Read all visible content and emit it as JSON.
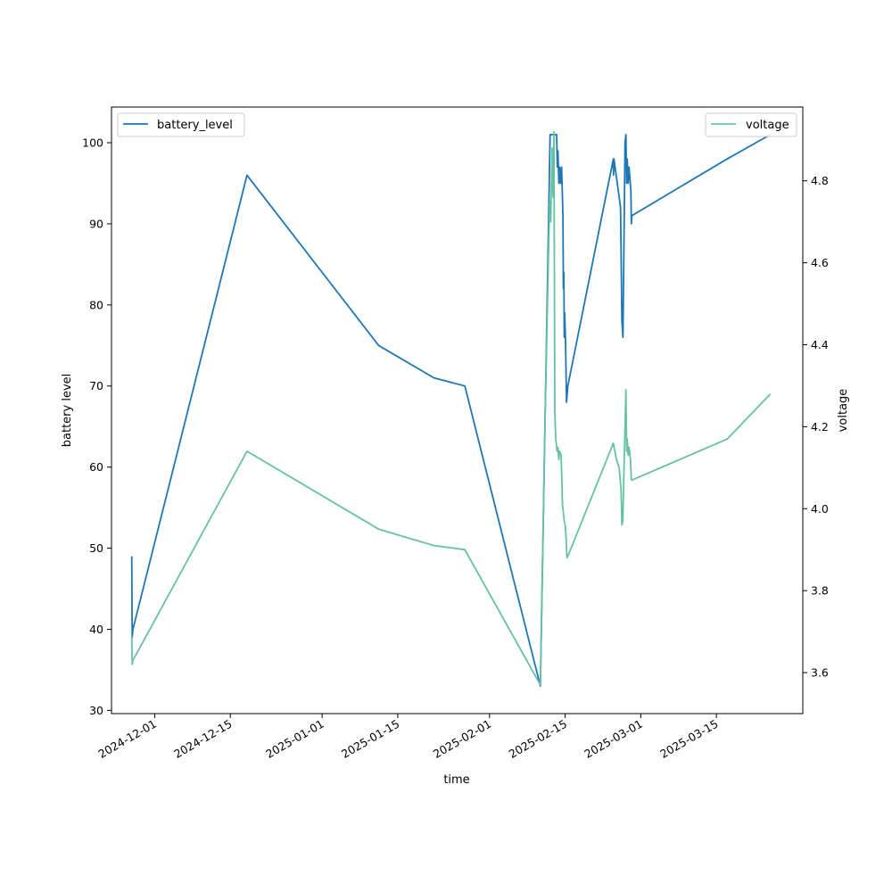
{
  "chart_data": {
    "type": "line",
    "xlabel": "time",
    "ylabel": "battery level",
    "y2label": "voltage",
    "x_axis_type": "date",
    "xlim": [
      "2024-11-23",
      "2025-03-31"
    ],
    "ylim": [
      29.6,
      104.4
    ],
    "y2lim": [
      3.5,
      4.98
    ],
    "x_ticks": [
      "2024-12-01",
      "2024-12-15",
      "2025-01-01",
      "2025-01-15",
      "2025-02-01",
      "2025-02-15",
      "2025-03-01",
      "2025-03-15"
    ],
    "y_ticks": [
      30,
      40,
      50,
      60,
      70,
      80,
      90,
      100
    ],
    "y2_ticks": [
      "3.6",
      "3.8",
      "4.0",
      "4.2",
      "4.4",
      "4.6",
      "4.8"
    ],
    "grid": false,
    "series": [
      {
        "name": "battery_level",
        "axis": "left",
        "color": "#1f77b4",
        "legend_position": "upper-left",
        "points": [
          [
            "2024-11-26 18:00",
            49
          ],
          [
            "2024-11-26 20:00",
            39
          ],
          [
            "2024-11-26 23:00",
            40
          ],
          [
            "2024-12-18 02:00",
            96
          ],
          [
            "2025-01-11 11:00",
            75
          ],
          [
            "2025-01-21 17:00",
            71
          ],
          [
            "2025-01-27 10:00",
            70
          ],
          [
            "2025-02-10 10:00",
            33
          ],
          [
            "2025-02-12 05:00",
            101
          ],
          [
            "2025-02-13 10:00",
            101
          ],
          [
            "2025-02-13 13:00",
            97
          ],
          [
            "2025-02-13 16:00",
            99
          ],
          [
            "2025-02-13 20:00",
            95
          ],
          [
            "2025-02-14 00:00",
            97
          ],
          [
            "2025-02-14 04:00",
            95
          ],
          [
            "2025-02-14 08:00",
            97
          ],
          [
            "2025-02-14 14:00",
            91
          ],
          [
            "2025-02-14 16:00",
            82
          ],
          [
            "2025-02-14 18:00",
            84
          ],
          [
            "2025-02-14 20:00",
            76
          ],
          [
            "2025-02-14 22:00",
            79
          ],
          [
            "2025-02-15 02:00",
            75
          ],
          [
            "2025-02-15 06:00",
            68
          ],
          [
            "2025-02-15 12:00",
            70
          ],
          [
            "2025-02-23 22:00",
            98
          ],
          [
            "2025-02-23 23:00",
            96
          ],
          [
            "2025-02-24 01:00",
            98
          ],
          [
            "2025-02-25 06:00",
            92
          ],
          [
            "2025-02-25 12:00",
            78
          ],
          [
            "2025-02-25 17:00",
            76
          ],
          [
            "2025-02-26 02:00",
            100
          ],
          [
            "2025-02-26 06:00",
            101
          ],
          [
            "2025-02-26 09:00",
            95
          ],
          [
            "2025-02-26 12:00",
            98
          ],
          [
            "2025-02-26 16:00",
            95
          ],
          [
            "2025-02-26 20:00",
            97
          ],
          [
            "2025-02-27 04:00",
            94
          ],
          [
            "2025-02-27 06:00",
            90
          ],
          [
            "2025-02-27 08:00",
            91
          ],
          [
            "2025-03-17 00:00",
            98
          ],
          [
            "2025-03-25 00:00",
            101
          ]
        ]
      },
      {
        "name": "voltage",
        "axis": "right",
        "color": "#66c2a5",
        "legend_position": "upper-right",
        "points": [
          [
            "2024-11-26 18:00",
            3.69
          ],
          [
            "2024-11-26 20:00",
            3.62
          ],
          [
            "2024-11-26 23:00",
            3.63
          ],
          [
            "2024-12-18 02:00",
            4.14
          ],
          [
            "2025-01-11 11:00",
            3.95
          ],
          [
            "2025-01-21 17:00",
            3.91
          ],
          [
            "2025-01-27 10:00",
            3.9
          ],
          [
            "2025-02-10 10:00",
            3.57
          ],
          [
            "2025-02-11 06:00",
            4.2
          ],
          [
            "2025-02-12 00:00",
            4.67
          ],
          [
            "2025-02-12 04:00",
            4.75
          ],
          [
            "2025-02-12 08:00",
            4.7
          ],
          [
            "2025-02-12 14:00",
            4.88
          ],
          [
            "2025-02-12 18:00",
            4.76
          ],
          [
            "2025-02-12 22:00",
            4.92
          ],
          [
            "2025-02-13 02:00",
            4.24
          ],
          [
            "2025-02-13 06:00",
            4.17
          ],
          [
            "2025-02-13 12:00",
            4.14
          ],
          [
            "2025-02-13 16:00",
            4.15
          ],
          [
            "2025-02-13 20:00",
            4.12
          ],
          [
            "2025-02-14 00:00",
            4.14
          ],
          [
            "2025-02-14 06:00",
            4.13
          ],
          [
            "2025-02-14 12:00",
            4.01
          ],
          [
            "2025-02-14 16:00",
            3.99
          ],
          [
            "2025-02-14 20:00",
            3.97
          ],
          [
            "2025-02-15 00:00",
            3.96
          ],
          [
            "2025-02-15 04:00",
            3.93
          ],
          [
            "2025-02-15 08:00",
            3.88
          ],
          [
            "2025-02-16 00:00",
            3.9
          ],
          [
            "2025-02-23 22:00",
            4.16
          ],
          [
            "2025-02-24 12:00",
            4.12
          ],
          [
            "2025-02-25 00:00",
            4.1
          ],
          [
            "2025-02-25 08:00",
            4.05
          ],
          [
            "2025-02-25 12:00",
            3.96
          ],
          [
            "2025-02-25 16:00",
            3.97
          ],
          [
            "2025-02-26 02:00",
            4.2
          ],
          [
            "2025-02-26 06:00",
            4.29
          ],
          [
            "2025-02-26 09:00",
            4.14
          ],
          [
            "2025-02-26 12:00",
            4.17
          ],
          [
            "2025-02-26 16:00",
            4.13
          ],
          [
            "2025-02-26 20:00",
            4.15
          ],
          [
            "2025-02-27 02:00",
            4.12
          ],
          [
            "2025-02-27 06:00",
            4.07
          ],
          [
            "2025-02-27 10:00",
            4.07
          ],
          [
            "2025-03-17 00:00",
            4.17
          ],
          [
            "2025-03-25 00:00",
            4.28
          ]
        ]
      }
    ]
  }
}
